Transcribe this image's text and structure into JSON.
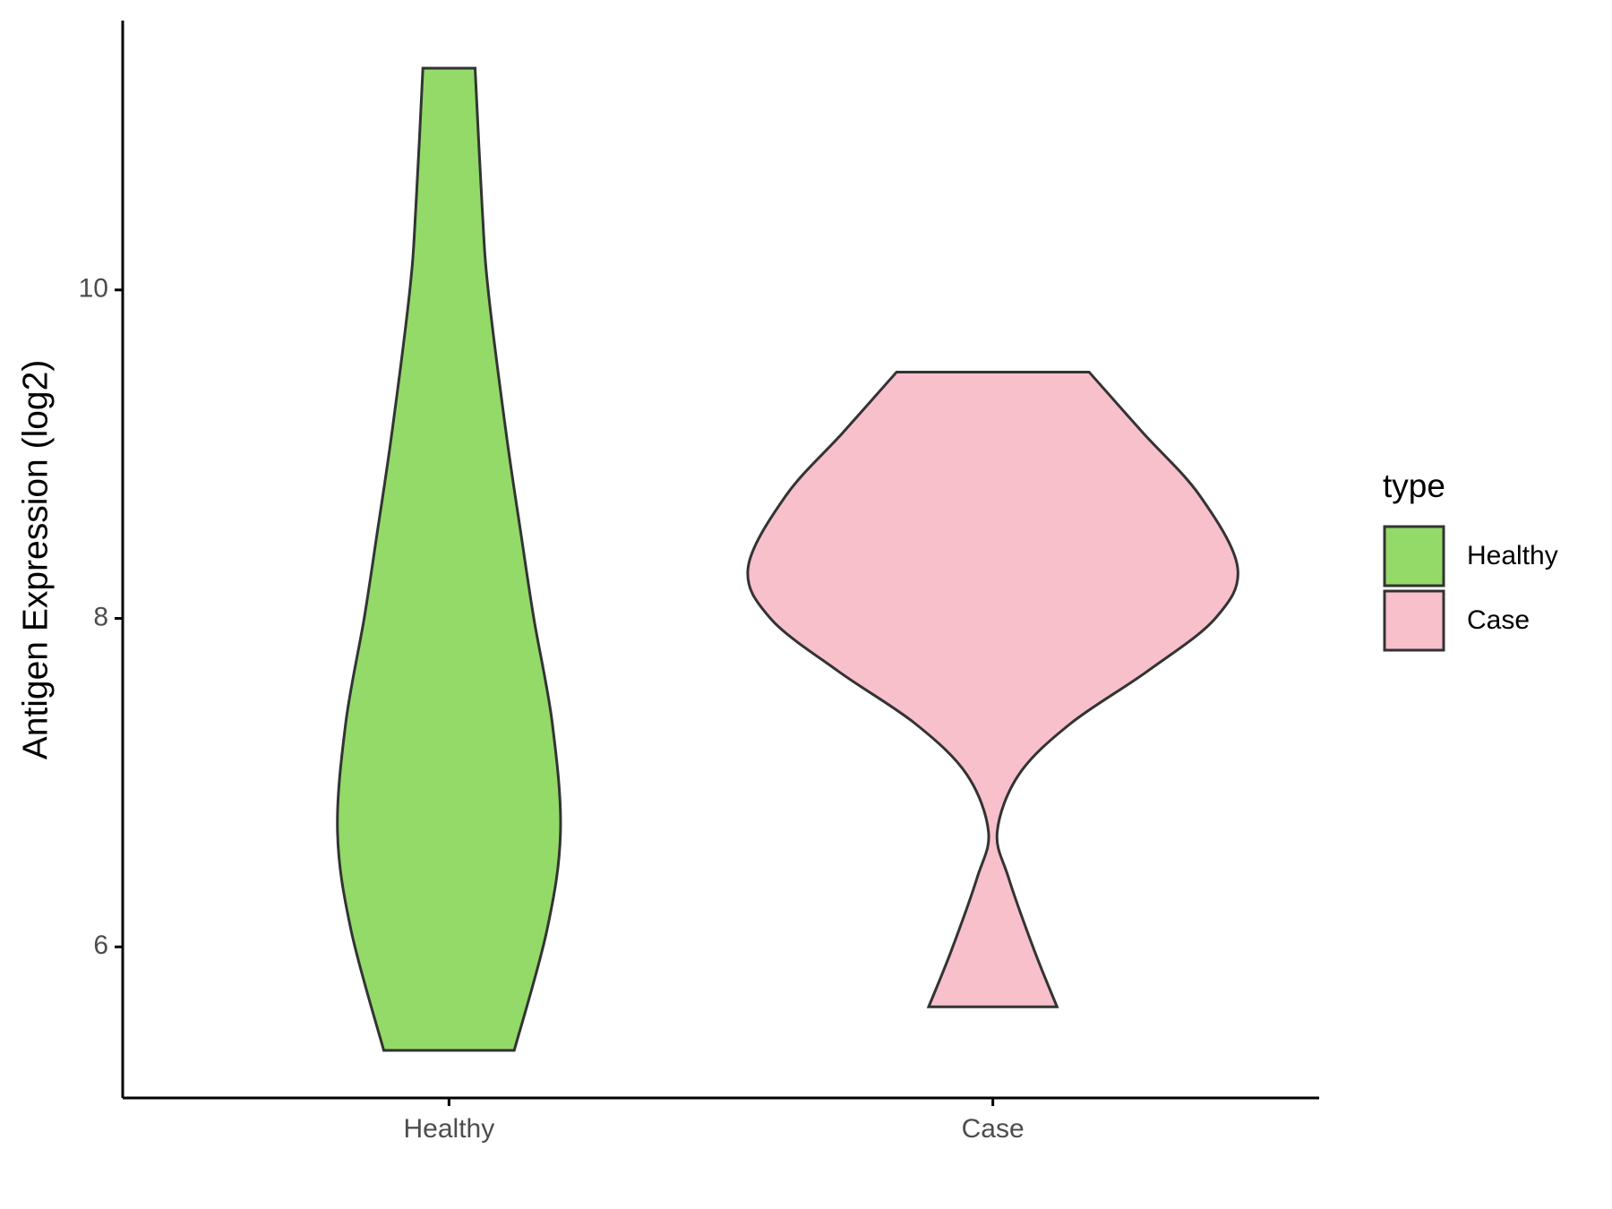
{
  "chart_data": {
    "type": "violin",
    "y_label": "Antigen Expression (log2)",
    "categories": [
      "Healthy",
      "Case"
    ],
    "legend_title": "type",
    "legend_position": "right",
    "series": [
      {
        "name": "Healthy",
        "color": "#93da69",
        "y": [
          5.37,
          6.1,
          6.7,
          7.36,
          8.0,
          8.5,
          9.13,
          10.0,
          10.5,
          11.35
        ],
        "half_widths": [
          0.12,
          0.18,
          0.205,
          0.19,
          0.156,
          0.133,
          0.105,
          0.072,
          0.061,
          0.048
        ]
      },
      {
        "name": "Case",
        "color": "#f7c0cb",
        "y": [
          5.635,
          5.98,
          6.42,
          6.7,
          7.05,
          7.36,
          7.68,
          8.0,
          8.31,
          8.75,
          9.13,
          9.5
        ],
        "half_widths": [
          0.118,
          0.076,
          0.029,
          0.008,
          0.048,
          0.143,
          0.285,
          0.409,
          0.45,
          0.38,
          0.276,
          0.177
        ]
      }
    ],
    "ylim": [
      5.08,
      11.64
    ],
    "yticks": [
      6,
      8,
      10
    ]
  }
}
